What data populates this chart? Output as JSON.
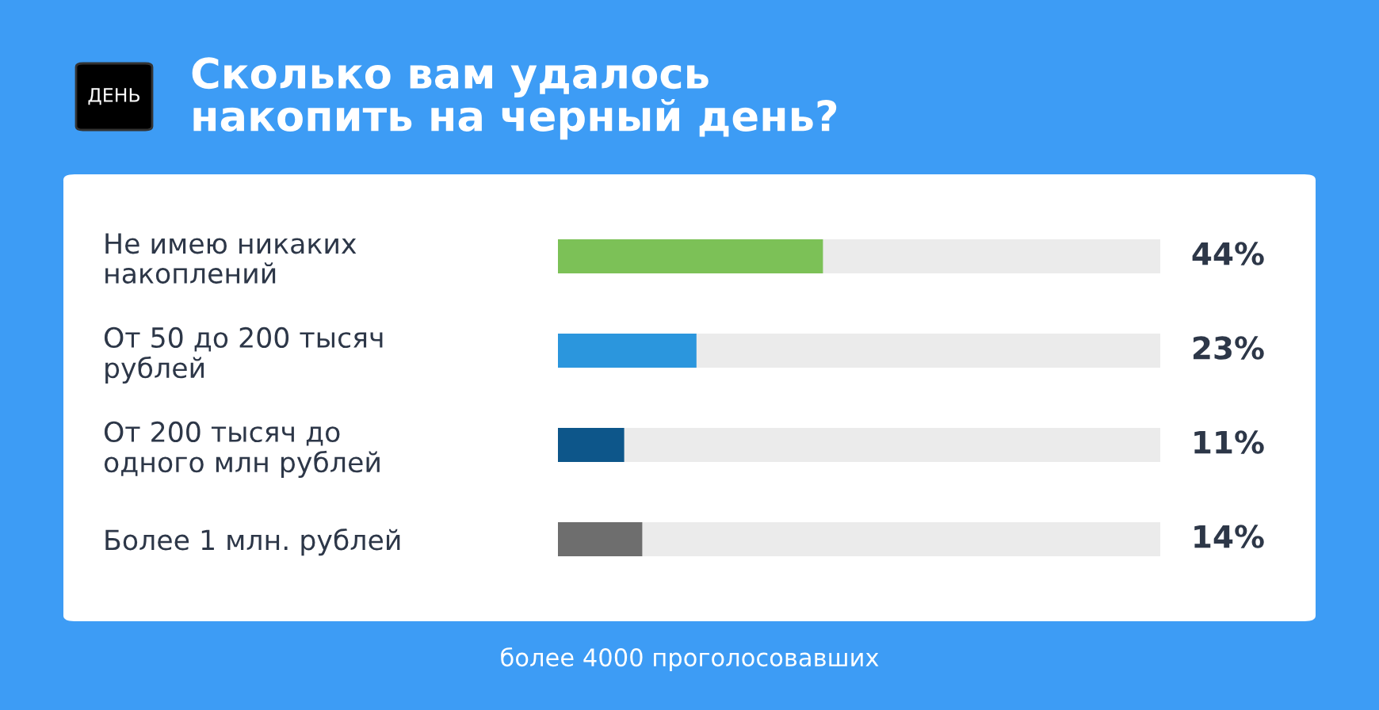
{
  "chart_data": {
    "type": "bar",
    "orientation": "horizontal",
    "title": "Сколько вам удалось\nнакопить на черный день?",
    "categories": [
      "Не имею никаких\nнакоплений",
      "От 50 до 200 тысяч\nрублей",
      "От 200 тысяч до\nодного млн рублей",
      "Более 1 млн. рублей"
    ],
    "values": [
      44,
      23,
      11,
      14
    ],
    "colors": [
      "#7cc157",
      "#2b96dd",
      "#0d568a",
      "#6e6e6e"
    ],
    "value_labels": [
      "44%",
      "23%",
      "11%",
      "14%"
    ],
    "xlim": [
      0,
      100
    ],
    "tick_labels": "y",
    "annotations": [
      "ДЕНЬ",
      "более 4000 проголосовавших"
    ]
  }
}
